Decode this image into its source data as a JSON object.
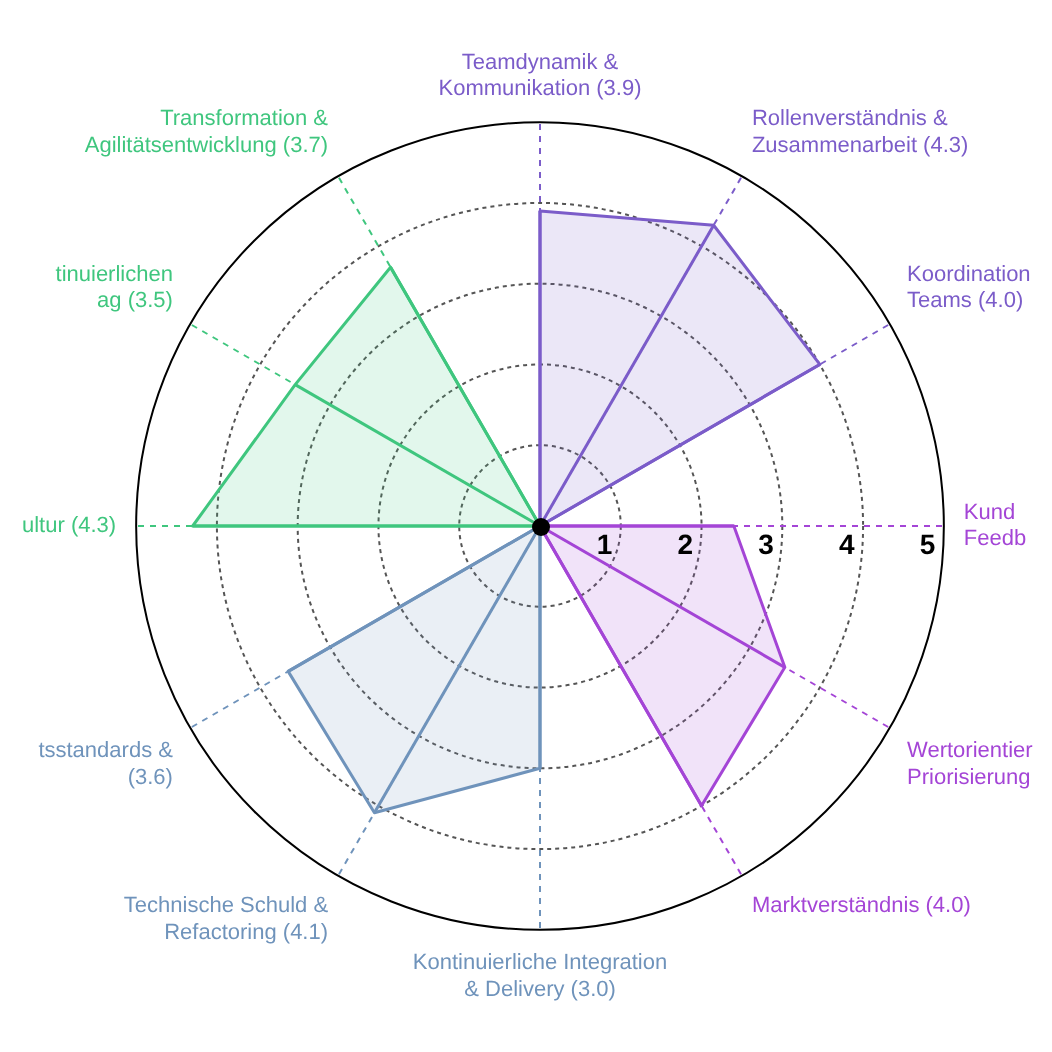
{
  "chart_data": {
    "type": "radar",
    "categories": [
      "Teamdynamik &\nKommunikation (3.9)",
      "Rollenverständnis &\nZusammenarbeit (4.3)",
      "Koordination\nTeams (4.0)",
      "Kund\nFeedb",
      "Wertorientier\nPriorisierung",
      "Marktverständnis (4.0)",
      "Kontinuierliche Integration\n& Delivery (3.0)",
      "Technische Schuld &\nRefactoring (4.1)",
      "tsstandards &\n(3.6)",
      "ultur (4.3)",
      "tinuierlichen\nag (3.5)",
      "Transformation &\nAgilitätsentwicklung (3.7)"
    ],
    "series": [
      {
        "color": "#7b5cc9",
        "values": [
          3.9,
          4.3,
          4.0,
          null,
          null,
          null,
          null,
          null,
          null,
          null,
          null,
          null
        ]
      },
      {
        "color": "#a445d6",
        "values": [
          null,
          null,
          null,
          2.4,
          3.5,
          4.0,
          null,
          null,
          null,
          null,
          null,
          null
        ]
      },
      {
        "color": "#6f93bb",
        "values": [
          null,
          null,
          null,
          null,
          null,
          null,
          3.0,
          4.1,
          3.6,
          null,
          null,
          null
        ]
      },
      {
        "color": "#3fc67e",
        "values": [
          null,
          null,
          null,
          null,
          null,
          null,
          null,
          null,
          null,
          4.3,
          3.5,
          3.7
        ]
      }
    ],
    "ylim": [
      0,
      5
    ],
    "yticks": [
      1,
      2,
      3,
      4,
      5
    ],
    "grid": true,
    "legend": false,
    "marker": "none"
  }
}
